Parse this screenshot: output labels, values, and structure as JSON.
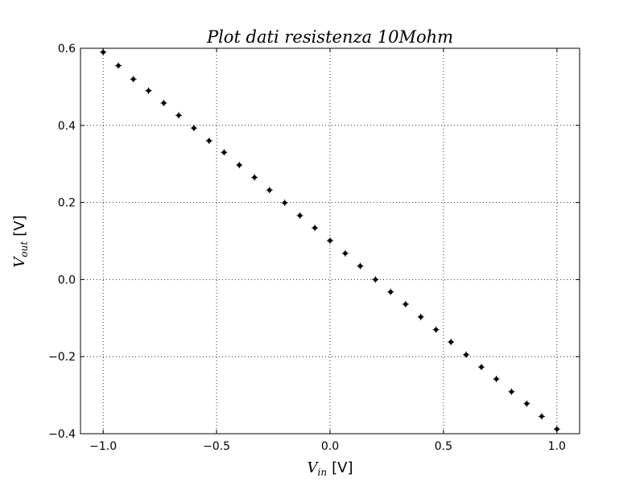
{
  "chart_data": {
    "type": "scatter",
    "title": "Plot dati resistenza 10Mohm",
    "xlabel": {
      "symbol": "V",
      "subscript": "in",
      "unit": "[V]"
    },
    "ylabel": {
      "symbol": "V",
      "subscript": "out",
      "unit": "[V]"
    },
    "xlim": [
      -1.1,
      1.1
    ],
    "ylim": [
      -0.4,
      0.6
    ],
    "xticks": [
      -1.0,
      -0.5,
      0.0,
      0.5,
      1.0
    ],
    "xtick_labels": [
      "−1.0",
      "−0.5",
      "0.0",
      "0.5",
      "1.0"
    ],
    "yticks": [
      -0.4,
      -0.2,
      0.0,
      0.2,
      0.4,
      0.6
    ],
    "ytick_labels": [
      "−0.4",
      "−0.2",
      "0.0",
      "0.2",
      "0.4",
      "0.6"
    ],
    "grid": true,
    "marker": "plus-dot",
    "marker_color": "#000000",
    "series": [
      {
        "x": [
          -1.0,
          -0.933,
          -0.867,
          -0.8,
          -0.733,
          -0.667,
          -0.6,
          -0.533,
          -0.467,
          -0.4,
          -0.333,
          -0.267,
          -0.2,
          -0.133,
          -0.067,
          0.0,
          0.067,
          0.133,
          0.2,
          0.267,
          0.333,
          0.4,
          0.467,
          0.533,
          0.6,
          0.667,
          0.733,
          0.8,
          0.867,
          0.933,
          1.0
        ],
        "y": [
          0.59,
          0.555,
          0.52,
          0.49,
          0.458,
          0.426,
          0.393,
          0.36,
          0.33,
          0.297,
          0.265,
          0.232,
          0.199,
          0.166,
          0.134,
          0.101,
          0.068,
          0.035,
          0.0,
          -0.032,
          -0.064,
          -0.097,
          -0.13,
          -0.162,
          -0.195,
          -0.227,
          -0.258,
          -0.291,
          -0.322,
          -0.355,
          -0.388
        ]
      }
    ]
  }
}
